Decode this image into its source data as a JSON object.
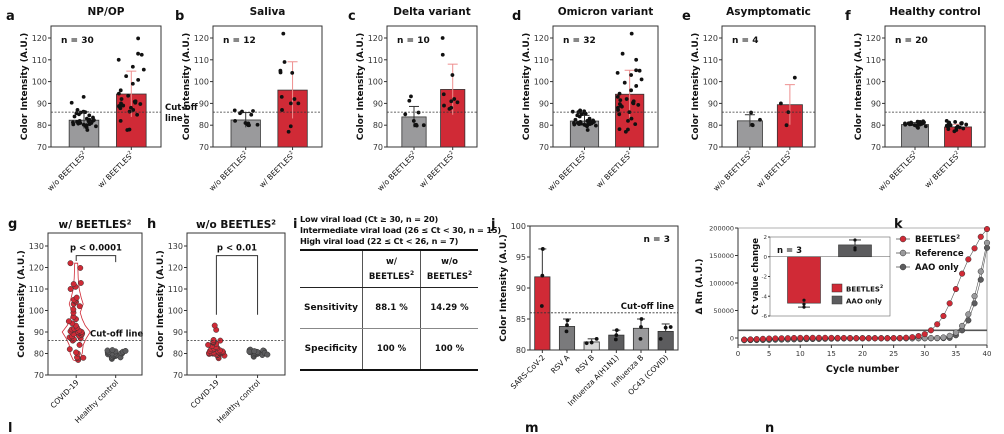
{
  "panel_letters": {
    "a": "a",
    "b": "b",
    "c": "c",
    "d": "d",
    "e": "e",
    "f": "f",
    "g": "g",
    "h": "h",
    "i": "i",
    "j": "j",
    "k": "k",
    "l": "l",
    "m": "m",
    "n": "n"
  },
  "colors": {
    "red": "#d02a36",
    "red_light": "#ee8f8f",
    "gray": "#9a9a9c",
    "dark_gray": "#5c5c5e",
    "light_gray": "#d8d8d8",
    "medium_gray": "#7a7a7c",
    "cutoff": "#333333"
  },
  "table": {
    "notes": [
      "Low viral load (Ct ≥ 30, n = 20)",
      "Intermediate viral load (26 ≤ Ct < 30, n = 15)",
      "High viral load (22 ≤ Ct < 26, n = 7)"
    ],
    "header": [
      "",
      "w/ BEETLES²",
      "w/o BEETLES²"
    ],
    "header_top": [
      "",
      "w/",
      "w/o"
    ],
    "header_bottom": [
      "",
      "BEETLES",
      "BEETLES"
    ],
    "header_sup": "2",
    "rows": [
      {
        "label": "Sensitivity",
        "with": "88.1 %",
        "without": "14.29 %"
      },
      {
        "label": "Specificity",
        "with": "100 %",
        "without": "100 %"
      }
    ]
  },
  "chart_data": [
    {
      "id": "a",
      "type": "bar",
      "title": "NP/OP",
      "n_label": "n = 30",
      "ylabel": "Color Intensity (A.U.)",
      "ylim": [
        70,
        125
      ],
      "yticks": [
        70,
        80,
        90,
        100,
        110,
        120
      ],
      "cutoff": 86,
      "cutoff_label": [
        "Cut-off",
        "line"
      ],
      "categories": [
        "w/o BEETLES²",
        "w/ BEETLES²"
      ],
      "values": [
        82.3,
        94.3
      ],
      "errors": [
        3.8,
        10.5
      ],
      "points": [
        [
          77.8,
          79,
          79.5,
          79.8,
          80,
          80.2,
          80.4,
          80.5,
          80.7,
          81,
          81,
          81.3,
          81.5,
          81.8,
          82,
          82,
          82.3,
          82.5,
          83,
          83.5,
          84,
          84.5,
          85,
          85.5,
          85.8,
          86,
          86.2,
          87,
          90.3,
          93
        ],
        [
          77.8,
          78,
          82,
          84.8,
          86.2,
          87,
          87.8,
          88,
          88.5,
          88.8,
          89,
          89.2,
          89.7,
          90,
          90.3,
          90.8,
          91,
          92,
          93.5,
          94.5,
          96,
          99,
          100.8,
          102.5,
          105.5,
          106.8,
          110,
          112.3,
          112.8,
          119.8
        ]
      ]
    },
    {
      "id": "b",
      "type": "bar",
      "title": "Saliva",
      "n_label": "n = 12",
      "ylabel": "Color Intensity (A.U.)",
      "ylim": [
        70,
        125
      ],
      "yticks": [
        70,
        80,
        90,
        100,
        110,
        120
      ],
      "cutoff": 86,
      "categories": [
        "w/o BEETLES²",
        "w/ BEETLES²"
      ],
      "values": [
        82.4,
        96.1
      ],
      "errors": [
        3.4,
        13.0
      ],
      "points": [
        [
          80,
          80,
          80.2,
          80.5,
          80.8,
          81,
          82,
          84.8,
          85.5,
          86.3,
          86.5,
          86.8
        ],
        [
          77,
          79.5,
          87,
          90,
          90,
          92,
          93,
          104,
          104.2,
          105,
          109,
          122
        ]
      ]
    },
    {
      "id": "c",
      "type": "bar",
      "title": "Delta variant",
      "n_label": "n = 10",
      "ylabel": "Color Intensity (A.U.)",
      "ylim": [
        70,
        125
      ],
      "yticks": [
        70,
        80,
        90,
        100,
        110,
        120
      ],
      "cutoff": 86,
      "categories": [
        "w/o BEETLES²",
        "w/ BEETLES²"
      ],
      "values": [
        83.8,
        96.4
      ],
      "errors": [
        4.8,
        11.6
      ],
      "points": [
        [
          79.8,
          80,
          80,
          80,
          80.2,
          82,
          85,
          85.8,
          91.2,
          93.2
        ],
        [
          87.5,
          88,
          89,
          90.5,
          91,
          92,
          94.2,
          103,
          112.3,
          120
        ]
      ]
    },
    {
      "id": "d",
      "type": "bar",
      "title": "Omicron variant",
      "n_label": "n = 32",
      "ylabel": "Color Intensity (A.U.)",
      "ylim": [
        70,
        125
      ],
      "yticks": [
        70,
        80,
        90,
        100,
        110,
        120
      ],
      "cutoff": 86,
      "categories": [
        "w/o BEETLES²",
        "w/ BEETLES²"
      ],
      "values": [
        81.9,
        94.2
      ],
      "errors": [
        2.6,
        11.0
      ],
      "points": [
        [
          77.8,
          79.5,
          79.8,
          80,
          80,
          80.2,
          80.3,
          80.5,
          80.5,
          80.7,
          80.8,
          81,
          81,
          81.2,
          81.3,
          81.5,
          81.5,
          81.8,
          82,
          82.2,
          82.5,
          83,
          84,
          84.5,
          85,
          85.3,
          85.6,
          86,
          86.2,
          86.4,
          86.6,
          86.8
        ],
        [
          77,
          78,
          78.2,
          80.5,
          82,
          83,
          85,
          86,
          87,
          88,
          88.5,
          89,
          89.3,
          89.7,
          90,
          90.3,
          91,
          91.5,
          92,
          93,
          94.5,
          96,
          98,
          99.5,
          101,
          103,
          104,
          105,
          105.2,
          110,
          112.8,
          122
        ]
      ]
    },
    {
      "id": "e",
      "type": "bar",
      "title": "Asymptomatic",
      "n_label": "n = 4",
      "ylabel": "Color Intensity (A.U.)",
      "ylim": [
        70,
        125
      ],
      "yticks": [
        70,
        80,
        90,
        100,
        110,
        120
      ],
      "cutoff": 86,
      "categories": [
        "w/o BEETLES²",
        "w/ BEETLES²"
      ],
      "values": [
        82.0,
        89.4
      ],
      "errors": [
        2.8,
        9.2
      ],
      "points": [
        [
          80,
          80.2,
          82.5,
          85.8
        ],
        [
          80,
          86,
          90,
          101.8
        ]
      ]
    },
    {
      "id": "f",
      "type": "bar",
      "title": "Healthy control",
      "n_label": "n = 20",
      "ylabel": "Color Intensity (A.U.)",
      "ylim": [
        70,
        125
      ],
      "yticks": [
        70,
        80,
        90,
        100,
        110,
        120
      ],
      "cutoff": 86,
      "categories": [
        "w/o BEETLES²",
        "w/ BEETLES²"
      ],
      "values": [
        80.3,
        79.2
      ],
      "errors": [
        0.9,
        1.2
      ],
      "points": [
        [
          78.8,
          79.2,
          79.5,
          79.8,
          80,
          80,
          80.2,
          80.3,
          80.4,
          80.5,
          80.6,
          80.8,
          80.9,
          81,
          81,
          81.2,
          81.3,
          81.5,
          81.6,
          81.8
        ],
        [
          77.2,
          77.8,
          78.2,
          78.5,
          78.8,
          79,
          79.2,
          79.4,
          79.6,
          79.8,
          80,
          80.1,
          80.3,
          80.5,
          80.7,
          80.9,
          81,
          81.2,
          81.5,
          82
        ]
      ]
    },
    {
      "id": "g",
      "type": "scatter",
      "subtype": "violin",
      "title": "w/ BEETLES²",
      "p_label": "p < 0.0001",
      "ylabel": "Color Intensity (A.U.)",
      "ylim": [
        70,
        130
      ],
      "yticks": [
        70,
        80,
        90,
        100,
        110,
        120,
        130
      ],
      "cutoff": 86,
      "cutoff_label": "Cut-off line",
      "categories": [
        "COVID-19",
        "Healthy control"
      ],
      "points": [
        [
          77,
          77.8,
          78,
          78.2,
          80,
          80.5,
          82,
          84,
          86,
          86.5,
          87,
          87.5,
          88,
          88.3,
          88.6,
          89,
          89.3,
          89.6,
          90,
          90,
          90.3,
          90.6,
          91,
          91.2,
          91.5,
          92,
          93,
          94,
          95,
          96,
          97,
          99,
          100.5,
          102,
          103,
          104,
          104.5,
          105,
          106,
          110,
          111,
          112.3,
          112.8,
          119.8,
          122
        ],
        [
          77.5,
          78,
          78.2,
          78.5,
          78.8,
          79,
          79.2,
          79.4,
          79.6,
          79.8,
          80,
          80,
          80.2,
          80.4,
          80.6,
          80.8,
          81,
          81.2,
          81.4,
          81.6
        ]
      ],
      "colors": [
        "red",
        "dark_gray"
      ]
    },
    {
      "id": "h",
      "type": "scatter",
      "subtype": "violin",
      "title": "w/o BEETLES²",
      "p_label": "p < 0.01",
      "ylabel": "Color Intensity (A.U.)",
      "ylim": [
        70,
        130
      ],
      "yticks": [
        70,
        80,
        90,
        100,
        110,
        120,
        130
      ],
      "cutoff": 86,
      "categories": [
        "COVID-19",
        "Healthy control"
      ],
      "points": [
        [
          77.8,
          78.5,
          79,
          79.2,
          79.5,
          79.6,
          79.8,
          80,
          80,
          80,
          80.1,
          80.2,
          80.3,
          80.4,
          80.5,
          80.5,
          80.6,
          80.8,
          81,
          81,
          81.2,
          81.5,
          81.8,
          82,
          82.3,
          82.6,
          83,
          83.5,
          84,
          84.5,
          85,
          85.3,
          85.6,
          86,
          86.3,
          91,
          93
        ],
        [
          78.5,
          79,
          79.3,
          79.6,
          79.8,
          80,
          80.2,
          80.4,
          80.6,
          80.8,
          81,
          81.2,
          81.4,
          81.6,
          81.8,
          80.3,
          80.7,
          79.5,
          80.9,
          81.1
        ]
      ],
      "colors": [
        "red",
        "dark_gray"
      ]
    },
    {
      "id": "j",
      "type": "bar",
      "n_label": "n = 3",
      "ylabel": "Color Intensity (A.U.)",
      "ylim": [
        80,
        100
      ],
      "yticks": [
        80,
        85,
        90,
        95,
        100
      ],
      "cutoff": 86,
      "cutoff_label": "Cut-off line",
      "categories": [
        "SARS-CoV-2",
        "RSV A",
        "RSV B",
        "Influenza A(H1N1)",
        "Influenza B",
        "OC43 (COVID)"
      ],
      "values": [
        91.8,
        83.8,
        81.3,
        82.4,
        83.5,
        83.0
      ],
      "errors": [
        4.5,
        1.2,
        0.5,
        0.8,
        1.5,
        1.2
      ],
      "points": [
        [
          87.1,
          92,
          96.3
        ],
        [
          83,
          84,
          84.8
        ],
        [
          81.1,
          81.2,
          81.8
        ],
        [
          81.7,
          82.4,
          83.2
        ],
        [
          81.8,
          83.7,
          85
        ],
        [
          81.8,
          83.6,
          83.7
        ]
      ],
      "bar_colors": [
        "red",
        "medium_gray",
        "light_gray",
        "dark_gray",
        "gray",
        "dark_gray"
      ]
    },
    {
      "id": "k",
      "type": "line",
      "xlabel": "Cycle number",
      "ylabel": "Δ Rn (A.U.)",
      "xlim": [
        0,
        40
      ],
      "ylim": [
        -8000,
        205000
      ],
      "xticks": [
        0,
        5,
        10,
        15,
        20,
        25,
        30,
        35,
        40
      ],
      "yticks": [
        0,
        50000,
        100000,
        150000,
        200000
      ],
      "threshold": 14000,
      "legend": "top-right",
      "x": [
        1,
        2,
        3,
        4,
        5,
        6,
        7,
        8,
        9,
        10,
        11,
        12,
        13,
        14,
        15,
        16,
        17,
        18,
        19,
        20,
        21,
        22,
        23,
        24,
        25,
        26,
        27,
        28,
        29,
        30,
        31,
        32,
        33,
        34,
        35,
        36,
        37,
        38,
        39,
        40
      ],
      "series": [
        {
          "name": "BEETLES²",
          "color": "red",
          "values": [
            -3000,
            -2500,
            -2000,
            -1500,
            -1000,
            -800,
            -500,
            -300,
            0,
            200,
            300,
            300,
            300,
            300,
            200,
            100,
            0,
            -100,
            -200,
            -300,
            -300,
            -400,
            -400,
            -300,
            -200,
            0,
            500,
            1500,
            3500,
            7000,
            14000,
            25000,
            40000,
            63000,
            89000,
            117000,
            143000,
            163000,
            184000,
            198000
          ]
        },
        {
          "name": "Reference",
          "color": "gray",
          "values": [
            -3000,
            -2800,
            -2600,
            -2400,
            -2200,
            -2000,
            -1800,
            -1600,
            -1400,
            -1200,
            -1000,
            -900,
            -800,
            -700,
            -600,
            -500,
            -500,
            -500,
            -500,
            -500,
            -500,
            -500,
            -500,
            -500,
            -500,
            -500,
            -500,
            -500,
            -400,
            -300,
            -200,
            0,
            1000,
            4000,
            10000,
            22000,
            43000,
            76000,
            121000,
            173000
          ]
        },
        {
          "name": "AAO only",
          "color": "dark_gray",
          "values": [
            -4000,
            -3800,
            -3600,
            -3500,
            -3300,
            -3000,
            -2800,
            -2600,
            -2400,
            -2200,
            -2000,
            -1800,
            -1600,
            -1400,
            -1200,
            -1000,
            -900,
            -800,
            -700,
            -600,
            -500,
            -500,
            -500,
            -500,
            -500,
            -500,
            -500,
            -500,
            -500,
            -500,
            -500,
            -400,
            -200,
            300,
            5000,
            14000,
            32000,
            63000,
            106000,
            164000
          ]
        }
      ],
      "inset": {
        "type": "bar",
        "n_label": "n = 3",
        "ylabel": "Ct value change",
        "ylim": [
          -6,
          2
        ],
        "yticks": [
          2,
          0,
          -2,
          -4,
          -6
        ],
        "categories": [
          "BEETLES²",
          "AAO only"
        ],
        "values": [
          -4.7,
          1.2
        ],
        "errors": [
          0.4,
          0.5
        ],
        "points": [
          [
            -4.4,
            -4.8,
            -5.1
          ],
          [
            0.7,
            0.9,
            1.7
          ]
        ],
        "colors": [
          "red",
          "dark_gray"
        ],
        "legend": [
          "BEETLES²",
          "AAO only"
        ]
      }
    }
  ]
}
